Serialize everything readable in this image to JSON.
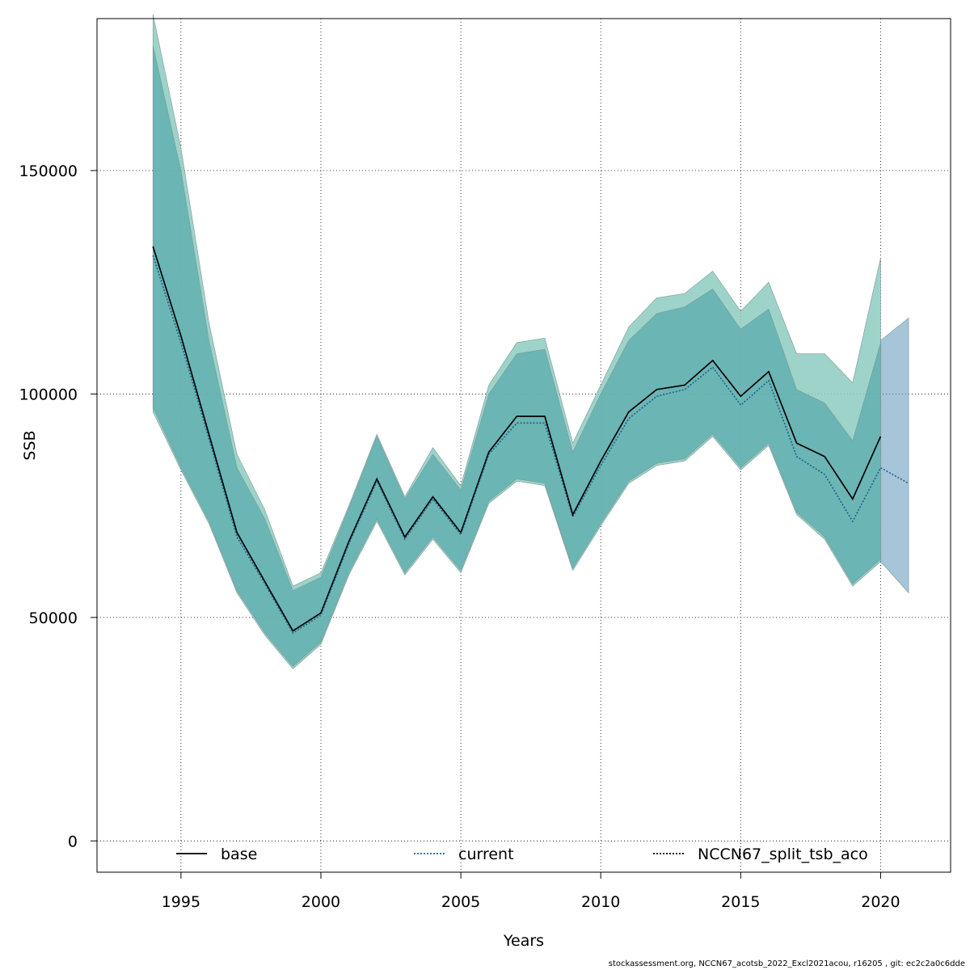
{
  "chart_data": {
    "type": "line",
    "xlabel": "Years",
    "ylabel": "SSB",
    "xlim": [
      1992,
      2022.5
    ],
    "ylim": [
      -7000,
      184000
    ],
    "x_ticks": [
      1995,
      2000,
      2005,
      2010,
      2015,
      2020
    ],
    "y_ticks": [
      0,
      50000,
      100000,
      150000
    ],
    "grid": true,
    "legend_position": "bottom",
    "colors": {
      "base_band": "#8dcbc0",
      "current_band": "#6a9ec0",
      "split_band": "#5aabac",
      "base_line": "#000000",
      "current_line": "#1f5f8b",
      "split_line": "#000000"
    },
    "series": [
      {
        "name": "base",
        "line_style": "solid",
        "x": [
          1994,
          1995,
          1996,
          1997,
          1998,
          1999,
          2000,
          2001,
          2002,
          2003,
          2004,
          2005,
          2006,
          2007,
          2008,
          2009,
          2010,
          2011,
          2012,
          2013,
          2014,
          2015,
          2016,
          2017,
          2018,
          2019,
          2020
        ],
        "values": [
          133000,
          113000,
          91000,
          69000,
          58000,
          47000,
          51000,
          67000,
          81000,
          68000,
          77000,
          69000,
          87000,
          95000,
          95000,
          73000,
          85000,
          96000,
          101000,
          102000,
          107500,
          99500,
          105000,
          89000,
          86000,
          76500,
          90500
        ],
        "upper": [
          185000,
          155000,
          116000,
          86500,
          74000,
          57000,
          60000,
          75000,
          91000,
          77000,
          88000,
          79500,
          102000,
          111500,
          112500,
          89000,
          102000,
          115000,
          121500,
          122500,
          127500,
          118500,
          125000,
          109000,
          109000,
          102500,
          130500
        ],
        "lower": [
          96000,
          83000,
          71000,
          55500,
          46000,
          38500,
          44000,
          59500,
          71500,
          59500,
          67500,
          60000,
          75500,
          80500,
          79500,
          60500,
          70500,
          80000,
          84000,
          85000,
          90500,
          83000,
          88500,
          73000,
          67500,
          57000,
          62500
        ]
      },
      {
        "name": "current",
        "line_style": "dotted",
        "x": [
          1994,
          1995,
          1996,
          1997,
          1998,
          1999,
          2000,
          2001,
          2002,
          2003,
          2004,
          2005,
          2006,
          2007,
          2008,
          2009,
          2010,
          2011,
          2012,
          2013,
          2014,
          2015,
          2016,
          2017,
          2018,
          2019,
          2020,
          2021
        ],
        "values": [
          131000,
          111500,
          90000,
          68000,
          57500,
          46500,
          50500,
          66500,
          80500,
          67500,
          76500,
          68500,
          86500,
          93500,
          93500,
          72500,
          84000,
          94500,
          99500,
          101000,
          106000,
          97500,
          103000,
          86000,
          82000,
          71500,
          83500,
          80000
        ],
        "upper": [
          null,
          null,
          null,
          null,
          null,
          null,
          null,
          null,
          null,
          null,
          null,
          null,
          null,
          null,
          null,
          null,
          null,
          null,
          null,
          null,
          null,
          null,
          null,
          null,
          null,
          null,
          112000,
          117000
        ],
        "lower": [
          null,
          null,
          null,
          null,
          null,
          null,
          null,
          null,
          null,
          null,
          null,
          null,
          null,
          null,
          null,
          null,
          null,
          null,
          null,
          null,
          null,
          null,
          null,
          null,
          null,
          null,
          62500,
          55500
        ]
      },
      {
        "name": "NCCN67_split_tsb_aco",
        "line_style": "dotted",
        "x": [
          1994,
          1995,
          1996,
          1997,
          1998,
          1999,
          2000,
          2001,
          2002,
          2003,
          2004,
          2005,
          2006,
          2007,
          2008,
          2009,
          2010,
          2011,
          2012,
          2013,
          2014,
          2015,
          2016,
          2017,
          2018,
          2019,
          2020
        ],
        "values": [
          133000,
          113000,
          91000,
          69000,
          58000,
          47000,
          51000,
          67000,
          81000,
          68000,
          77000,
          69000,
          87000,
          95000,
          95000,
          73000,
          85000,
          96000,
          101000,
          102000,
          107500,
          99500,
          105000,
          89000,
          86000,
          76500,
          90500
        ],
        "upper": [
          178000,
          150000,
          112000,
          83500,
          72000,
          56000,
          59000,
          74500,
          90500,
          76500,
          86500,
          78500,
          100000,
          109000,
          110000,
          87000,
          100000,
          112000,
          118000,
          119500,
          123500,
          114500,
          119000,
          101000,
          98000,
          89500,
          111500
        ],
        "lower": [
          97000,
          83500,
          71500,
          56000,
          46500,
          39000,
          44500,
          60000,
          72000,
          60000,
          68000,
          60500,
          76000,
          81000,
          80000,
          61000,
          71000,
          80500,
          84500,
          85500,
          91000,
          83500,
          89000,
          73500,
          68000,
          57500,
          63000
        ]
      }
    ]
  },
  "footer": "stockassessment.org, NCCN67_acotsb_2022_Excl2021acou, r16205 , git: ec2c2a0c6dde"
}
